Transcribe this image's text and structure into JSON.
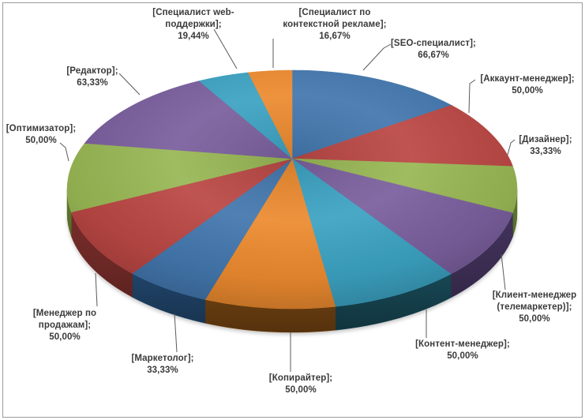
{
  "window": {
    "background": "#FFFFFF",
    "border_color": "#9B9B9B"
  },
  "chart_data": {
    "type": "pie",
    "is_3d": true,
    "title": "",
    "legend": "none",
    "start_angle_deg": 0,
    "direction": "clockwise",
    "label_format": "[name]; value%",
    "decimal_separator": ",",
    "label_text_color": "#3A3A3A",
    "leader_line_color": "#595959",
    "slices": [
      {
        "name": "SEO-специалист",
        "name_lines": [
          "[SEO-специалист];"
        ],
        "value": 66.67,
        "value_label": "66,67%",
        "color": "#4377AE",
        "side_color": "#27527F"
      },
      {
        "name": "Аккаунт-менеджер",
        "name_lines": [
          "[Аккаунт-менеджер];"
        ],
        "value": 50.0,
        "value_label": "50,00%",
        "color": "#BA4744",
        "side_color": "#7E2F2C"
      },
      {
        "name": "Дизайнер",
        "name_lines": [
          "[Дизайнер];"
        ],
        "value": 33.33,
        "value_label": "33,33%",
        "color": "#98B754",
        "side_color": "#5F7A2F"
      },
      {
        "name": "Клиент-менеджер (телемаркетер)",
        "name_lines": [
          "[Клиент-менеджер",
          "(телемаркетер)];"
        ],
        "value": 50.0,
        "value_label": "50,00%",
        "color": "#7A5F9D",
        "side_color": "#453560"
      },
      {
        "name": "Контент-менеджер",
        "name_lines": [
          "[Контент-менеджер];"
        ],
        "value": 50.0,
        "value_label": "50,00%",
        "color": "#3BA2C2",
        "side_color": "#1C5666"
      },
      {
        "name": "Копирайтер",
        "name_lines": [
          "[Копирайтер];"
        ],
        "value": 50.0,
        "value_label": "50,00%",
        "color": "#EC8A2F",
        "side_color": "#8E5316"
      },
      {
        "name": "Маркетолог",
        "name_lines": [
          "[Маркетолог];"
        ],
        "value": 33.33,
        "value_label": "33,33%",
        "color": "#4377AE",
        "side_color": "#27527F"
      },
      {
        "name": "Менеджер по продажам",
        "name_lines": [
          "[Менеджер по",
          "продажам];"
        ],
        "value": 50.0,
        "value_label": "50,00%",
        "color": "#BA4744",
        "side_color": "#7E2F2C"
      },
      {
        "name": "Оптимизатор",
        "name_lines": [
          "[Оптимизатор];"
        ],
        "value": 50.0,
        "value_label": "50,00%",
        "color": "#98B754",
        "side_color": "#5F7A2F"
      },
      {
        "name": "Редактор",
        "name_lines": [
          "[Редактор];"
        ],
        "value": 63.33,
        "value_label": "63,33%",
        "color": "#7A5F9D",
        "side_color": "#453560"
      },
      {
        "name": "Специалист web-поддержки",
        "name_lines": [
          "[Специалист web-",
          "поддержки];"
        ],
        "value": 19.44,
        "value_label": "19,44%",
        "color": "#3BA2C2",
        "side_color": "#1C5666"
      },
      {
        "name": "Специалист по контекстной рекламе",
        "name_lines": [
          "[Специалист по",
          "контекстной рекламе];"
        ],
        "value": 16.67,
        "value_label": "16,67%",
        "color": "#EC8A2F",
        "side_color": "#8E5316"
      }
    ]
  }
}
